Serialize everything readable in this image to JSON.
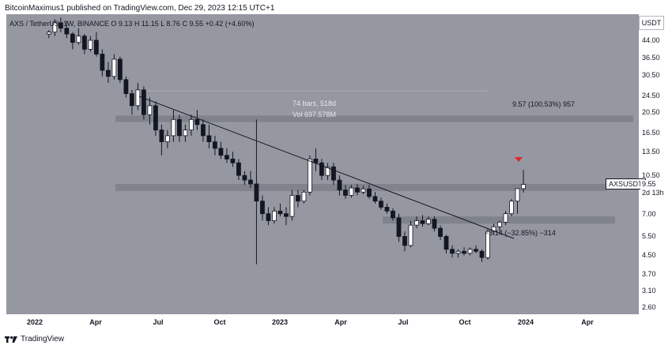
{
  "header": {
    "publisher_line": "BitcoinMaximus1 published on TradingView.com, Dec 29, 2023 12:15 UTC+1"
  },
  "footer": {
    "brand": "TradingView"
  },
  "symbol": {
    "legend": "AXS / TetherUS, 1W, BINANCE  O 9.13  H 11.15  L 8.76  C 9.55  +0.42 (+4.60%)",
    "currency": "USDT",
    "ticker": "AXSUSDT",
    "last_price": "9.55",
    "countdown": "2d 13h"
  },
  "annotations": {
    "range_bars": "74 bars, 518d",
    "range_vol": "Vol 697.578M",
    "upper_measure": "9.57 (100.53%) 957",
    "lower_measure": "−3.14 (−32.85%) −314"
  },
  "colors": {
    "background": "#9598a1",
    "candle_up": "#ffffff",
    "candle_down": "#131722",
    "zone": "#7c7f88",
    "arrow": "#e8202a"
  },
  "chart_data": {
    "type": "candlestick",
    "scale": "log",
    "price_ticks": [
      44.0,
      36.5,
      30.5,
      24.5,
      20.5,
      16.5,
      13.5,
      10.5,
      7.0,
      5.5,
      4.5,
      3.7,
      3.1,
      2.6
    ],
    "time_ticks": [
      "2022",
      "Apr",
      "Jul",
      "Oct",
      "2023",
      "Apr",
      "Jul",
      "Oct",
      "2024",
      "Apr"
    ],
    "resistance_zone": [
      18.5,
      19.8
    ],
    "support_zone": [
      6.3,
      6.8
    ],
    "horizontal_zone": [
      8.9,
      9.6
    ],
    "descending_trendline": [
      {
        "x": "2022-06-01",
        "y": 24.0
      },
      {
        "x": "2023-12-01",
        "y": 5.3
      }
    ],
    "candles": [
      [
        47,
        49,
        45,
        48
      ],
      [
        48,
        55,
        46,
        53
      ],
      [
        53,
        56,
        48,
        50
      ],
      [
        50,
        54,
        45,
        47
      ],
      [
        47,
        48,
        40,
        43
      ],
      [
        43,
        50,
        42,
        46
      ],
      [
        46,
        47,
        38,
        40
      ],
      [
        40,
        46,
        39,
        44
      ],
      [
        44,
        48,
        37,
        38
      ],
      [
        38,
        40,
        30,
        32
      ],
      [
        32,
        35,
        28,
        30
      ],
      [
        30,
        38,
        29,
        36
      ],
      [
        36,
        37,
        28,
        29
      ],
      [
        29,
        30,
        24,
        25
      ],
      [
        25,
        26,
        20,
        22
      ],
      [
        22,
        28,
        21,
        26
      ],
      [
        26,
        27,
        19,
        20
      ],
      [
        20,
        24,
        18,
        22
      ],
      [
        22,
        23,
        16,
        17
      ],
      [
        17,
        18,
        13,
        15
      ],
      [
        15,
        17,
        14,
        16
      ],
      [
        16,
        21,
        15,
        19
      ],
      [
        19,
        20,
        15,
        16
      ],
      [
        16,
        18,
        15,
        17
      ],
      [
        17,
        20,
        16,
        19
      ],
      [
        19,
        21,
        17,
        18
      ],
      [
        18,
        19,
        15,
        16
      ],
      [
        16,
        18,
        14,
        15
      ],
      [
        15,
        16,
        13,
        14
      ],
      [
        14,
        15,
        12.5,
        13
      ],
      [
        13,
        14,
        12,
        12.5
      ],
      [
        12.5,
        13.5,
        11.5,
        12
      ],
      [
        12,
        12.5,
        10,
        10.5
      ],
      [
        10.5,
        11,
        9.5,
        10
      ],
      [
        10,
        11,
        9.2,
        9.6
      ],
      [
        9.6,
        19,
        4.1,
        8
      ],
      [
        8,
        8.5,
        6.5,
        7
      ],
      [
        7,
        7.5,
        6.2,
        6.5
      ],
      [
        6.5,
        7.5,
        6.3,
        7.2
      ],
      [
        7.2,
        7.8,
        6.8,
        7
      ],
      [
        7,
        7.5,
        6.2,
        6.8
      ],
      [
        6.8,
        9,
        6.5,
        8.5
      ],
      [
        8.5,
        9,
        7.5,
        8
      ],
      [
        8,
        9,
        7.8,
        8.8
      ],
      [
        8.8,
        13,
        8.5,
        12.5
      ],
      [
        12.5,
        14,
        11,
        12
      ],
      [
        12,
        12.5,
        10,
        10.5
      ],
      [
        10.5,
        12,
        10,
        11.5
      ],
      [
        11.5,
        12,
        9.5,
        10
      ],
      [
        10,
        10.5,
        8.5,
        9
      ],
      [
        9,
        9.5,
        8.2,
        8.5
      ],
      [
        8.5,
        9.5,
        8.3,
        9.2
      ],
      [
        9.2,
        9.6,
        8.5,
        8.8
      ],
      [
        8.8,
        9.4,
        8.6,
        9.1
      ],
      [
        9.1,
        9.5,
        8.2,
        8.4
      ],
      [
        8.4,
        8.8,
        7.8,
        8
      ],
      [
        8,
        8.3,
        7.3,
        7.5
      ],
      [
        7.5,
        7.8,
        7,
        7.2
      ],
      [
        7.2,
        7.4,
        6.5,
        6.7
      ],
      [
        6.7,
        7,
        5.2,
        5.5
      ],
      [
        5.5,
        5.8,
        4.7,
        5
      ],
      [
        5,
        6.5,
        4.9,
        6.2
      ],
      [
        6.2,
        6.8,
        6,
        6.5
      ],
      [
        6.5,
        6.9,
        6.1,
        6.3
      ],
      [
        6.3,
        6.8,
        6.2,
        6.6
      ],
      [
        6.6,
        6.8,
        5.8,
        6
      ],
      [
        6,
        6.2,
        5.3,
        5.5
      ],
      [
        5.5,
        5.6,
        4.6,
        4.8
      ],
      [
        4.8,
        5,
        4.4,
        4.6
      ],
      [
        4.6,
        4.8,
        4.4,
        4.7
      ],
      [
        4.7,
        4.9,
        4.5,
        4.6
      ],
      [
        4.6,
        4.9,
        4.5,
        4.8
      ],
      [
        4.8,
        5,
        4.6,
        4.7
      ],
      [
        4.7,
        4.8,
        4.2,
        4.4
      ],
      [
        4.4,
        6,
        4.3,
        5.8
      ],
      [
        5.8,
        6.3,
        5.6,
        6.1
      ],
      [
        6.1,
        6.5,
        5.8,
        6.4
      ],
      [
        6.4,
        7.2,
        6.2,
        7
      ],
      [
        7,
        8.2,
        6.8,
        8
      ],
      [
        8,
        9.1,
        7,
        9.13
      ],
      [
        9.13,
        11.15,
        8.76,
        9.55
      ]
    ]
  }
}
